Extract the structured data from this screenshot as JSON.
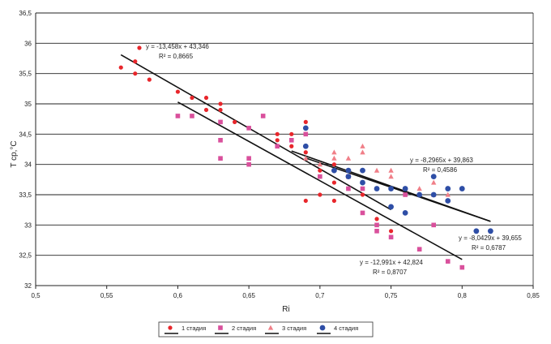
{
  "chart_data": {
    "type": "scatter",
    "title": "",
    "xlabel": "Ri",
    "ylabel": "T ср,°С",
    "xlim": [
      0.5,
      0.85
    ],
    "ylim": [
      32,
      36.5
    ],
    "xticks": [
      "0,5",
      "0,55",
      "0,6",
      "0,65",
      "0,7",
      "0,75",
      "0,8",
      "0,85"
    ],
    "yticks": [
      "32",
      "32,5",
      "33",
      "33,5",
      "34",
      "34,5",
      "35",
      "35,5",
      "36",
      "36,5"
    ],
    "grid": "horizontal",
    "legend_position": "bottom",
    "series": [
      {
        "name": "1 стадия",
        "color": "#e8262b",
        "marker": "circle",
        "points": [
          [
            0.56,
            35.6
          ],
          [
            0.57,
            35.7
          ],
          [
            0.57,
            35.5
          ],
          [
            0.58,
            35.4
          ],
          [
            0.6,
            35.2
          ],
          [
            0.61,
            35.1
          ],
          [
            0.62,
            35.1
          ],
          [
            0.62,
            34.9
          ],
          [
            0.63,
            35.0
          ],
          [
            0.63,
            34.9
          ],
          [
            0.64,
            34.7
          ],
          [
            0.65,
            34.6
          ],
          [
            0.67,
            34.5
          ],
          [
            0.67,
            34.4
          ],
          [
            0.68,
            34.5
          ],
          [
            0.68,
            34.3
          ],
          [
            0.69,
            34.7
          ],
          [
            0.69,
            34.2
          ],
          [
            0.69,
            33.4
          ],
          [
            0.7,
            33.9
          ],
          [
            0.7,
            33.8
          ],
          [
            0.7,
            33.5
          ],
          [
            0.71,
            34.0
          ],
          [
            0.71,
            33.7
          ],
          [
            0.71,
            33.4
          ],
          [
            0.72,
            33.6
          ],
          [
            0.73,
            33.5
          ],
          [
            0.74,
            33.1
          ],
          [
            0.75,
            32.9
          ],
          [
            0.75,
            32.8
          ]
        ],
        "trendline": {
          "slope": -13.458,
          "intercept": 43.346,
          "equation": "y = -13,458x + 43,346",
          "r2_label": "R² = 0,8665"
        }
      },
      {
        "name": "2 стадия",
        "color": "#d9509c",
        "marker": "square",
        "points": [
          [
            0.6,
            34.8
          ],
          [
            0.61,
            34.8
          ],
          [
            0.63,
            34.7
          ],
          [
            0.63,
            34.4
          ],
          [
            0.63,
            34.1
          ],
          [
            0.65,
            34.6
          ],
          [
            0.65,
            34.1
          ],
          [
            0.65,
            34.0
          ],
          [
            0.66,
            34.8
          ],
          [
            0.67,
            34.3
          ],
          [
            0.68,
            34.4
          ],
          [
            0.69,
            34.5
          ],
          [
            0.7,
            33.8
          ],
          [
            0.72,
            33.8
          ],
          [
            0.72,
            33.6
          ],
          [
            0.73,
            33.6
          ],
          [
            0.73,
            33.2
          ],
          [
            0.74,
            33.0
          ],
          [
            0.74,
            32.9
          ],
          [
            0.75,
            32.8
          ],
          [
            0.76,
            33.5
          ],
          [
            0.77,
            32.6
          ],
          [
            0.78,
            33.0
          ],
          [
            0.79,
            32.4
          ],
          [
            0.8,
            32.3
          ]
        ],
        "trendline": {
          "slope": -12.991,
          "intercept": 42.824,
          "equation": "y = -12,991x + 42,824",
          "r2_label": "R² = 0,8707"
        }
      },
      {
        "name": "3 стадия",
        "color": "#f07f88",
        "marker": "triangle",
        "points": [
          [
            0.69,
            34.1
          ],
          [
            0.7,
            34.0
          ],
          [
            0.71,
            34.2
          ],
          [
            0.71,
            34.1
          ],
          [
            0.72,
            34.1
          ],
          [
            0.73,
            34.3
          ],
          [
            0.73,
            34.2
          ],
          [
            0.74,
            33.9
          ],
          [
            0.75,
            33.9
          ],
          [
            0.75,
            33.8
          ],
          [
            0.76,
            33.6
          ],
          [
            0.77,
            33.6
          ],
          [
            0.78,
            33.7
          ],
          [
            0.78,
            33.5
          ],
          [
            0.79,
            33.5
          ]
        ],
        "trendline": {
          "slope": -8.2965,
          "intercept": 39.863,
          "equation": "y = -8,2965x + 39,863",
          "r2_label": "R² = 0,4586"
        }
      },
      {
        "name": "4 стадия",
        "color": "#2e4ea6",
        "marker": "circle",
        "points": [
          [
            0.69,
            34.6
          ],
          [
            0.69,
            34.3
          ],
          [
            0.71,
            33.9
          ],
          [
            0.72,
            33.9
          ],
          [
            0.72,
            33.8
          ],
          [
            0.73,
            33.9
          ],
          [
            0.73,
            33.7
          ],
          [
            0.74,
            33.6
          ],
          [
            0.75,
            33.6
          ],
          [
            0.75,
            33.3
          ],
          [
            0.76,
            33.6
          ],
          [
            0.76,
            33.2
          ],
          [
            0.77,
            33.5
          ],
          [
            0.78,
            33.8
          ],
          [
            0.78,
            33.5
          ],
          [
            0.79,
            33.6
          ],
          [
            0.79,
            33.4
          ],
          [
            0.8,
            33.6
          ],
          [
            0.81,
            32.9
          ],
          [
            0.82,
            32.9
          ]
        ],
        "trendline": {
          "slope": -8.0429,
          "intercept": 39.655,
          "equation": "y = -8,0429x + 39,655",
          "r2_label": "R² = 0,6787"
        }
      }
    ]
  }
}
